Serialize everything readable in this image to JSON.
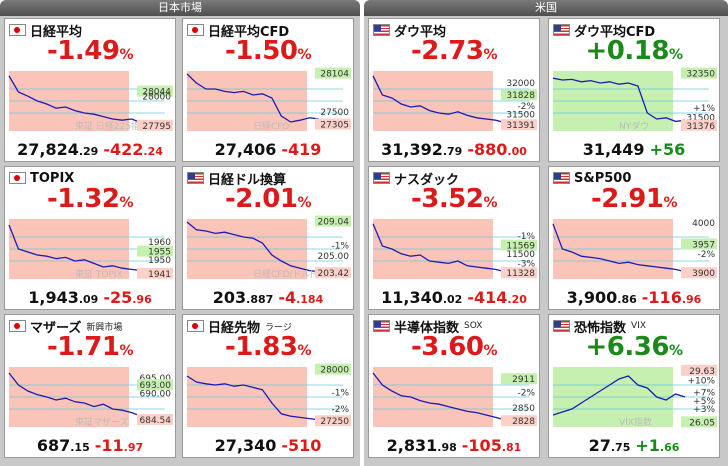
{
  "panels": {
    "left": {
      "title": "日本市場"
    },
    "right": {
      "title": "米国"
    }
  },
  "colors": {
    "down": "#dd1a1a",
    "up": "#1a8a1a",
    "down_fill": "#fbc4b8",
    "up_fill": "#c6f0b0",
    "line": "#1b1bb5"
  },
  "cards": [
    {
      "id": "nikkei",
      "flag": "jp",
      "name": "日経平均",
      "sub": "",
      "pct": "-1.49",
      "pct_unit": "%",
      "dir": "down",
      "price_int": "27,824",
      "price_dec": ".29",
      "chg_int": "-422",
      "chg_dec": ".24",
      "labels": [
        {
          "t": "28044",
          "y": 0.36,
          "c": "green"
        },
        {
          "t": "28000",
          "y": 0.44,
          "c": "plain"
        },
        {
          "t": "27795",
          "y": 0.93,
          "c": "red"
        }
      ],
      "watermark": "東証 日経225指数",
      "trend": [
        0.08,
        0.35,
        0.42,
        0.5,
        0.55,
        0.62,
        0.6,
        0.66,
        0.7,
        0.72,
        0.76,
        0.8,
        0.82,
        0.8,
        0.86
      ]
    },
    {
      "id": "nikkei_cfd",
      "flag": "jp",
      "name": "日経平均CFD",
      "sub": "",
      "pct": "-1.50",
      "pct_unit": "%",
      "dir": "down",
      "price_int": "27,406",
      "price_dec": "",
      "chg_int": "-419",
      "chg_dec": "",
      "labels": [
        {
          "t": "28104",
          "y": 0.06,
          "c": "green"
        },
        {
          "t": "27500",
          "y": 0.7,
          "c": "plain"
        },
        {
          "t": "27305",
          "y": 0.91,
          "c": "red"
        }
      ],
      "watermark": "日経CFD",
      "trend": [
        0.05,
        0.2,
        0.3,
        0.3,
        0.34,
        0.36,
        0.34,
        0.4,
        0.38,
        0.45,
        0.75,
        0.85,
        0.82,
        0.78,
        0.8
      ]
    },
    {
      "id": "dow",
      "flag": "us",
      "name": "ダウ平均",
      "sub": "",
      "pct": "-2.73",
      "pct_unit": "%",
      "dir": "down",
      "price_int": "31,392",
      "price_dec": ".79",
      "chg_int": "-880",
      "chg_dec": ".00",
      "labels": [
        {
          "t": "32000",
          "y": 0.22,
          "c": "plain"
        },
        {
          "t": "31828",
          "y": 0.42,
          "c": "green"
        },
        {
          "t": "-2%",
          "y": 0.6,
          "c": "plain"
        },
        {
          "t": "31500",
          "y": 0.74,
          "c": "plain"
        },
        {
          "t": "31391",
          "y": 0.92,
          "c": "red"
        }
      ],
      "watermark": "",
      "trend": [
        0.08,
        0.4,
        0.45,
        0.55,
        0.6,
        0.58,
        0.66,
        0.7,
        0.72,
        0.68,
        0.74,
        0.78,
        0.8,
        0.82,
        0.86
      ]
    },
    {
      "id": "dow_cfd",
      "flag": "us",
      "name": "ダウ平均CFD",
      "sub": "",
      "pct": "+0.18",
      "pct_unit": "%",
      "dir": "up",
      "price_int": "31,449",
      "price_dec": "",
      "chg_int": "+56",
      "chg_dec": "",
      "labels": [
        {
          "t": "32350",
          "y": 0.06,
          "c": "green"
        },
        {
          "t": "+1%",
          "y": 0.63,
          "c": "plain"
        },
        {
          "t": "31500",
          "y": 0.79,
          "c": "plain"
        },
        {
          "t": "31376",
          "y": 0.93,
          "c": "red"
        }
      ],
      "watermark": "NYダウ",
      "trend": [
        0.12,
        0.15,
        0.14,
        0.18,
        0.16,
        0.2,
        0.18,
        0.22,
        0.2,
        0.25,
        0.7,
        0.8,
        0.78,
        0.84,
        0.82
      ]
    },
    {
      "id": "topix",
      "flag": "jp",
      "name": "TOPIX",
      "sub": "",
      "pct": "-1.32",
      "pct_unit": "%",
      "dir": "down",
      "price_int": "1,943",
      "price_dec": ".09",
      "chg_int": "-25",
      "chg_dec": ".96",
      "labels": [
        {
          "t": "1960",
          "y": 0.4,
          "c": "plain"
        },
        {
          "t": "1955",
          "y": 0.56,
          "c": "green"
        },
        {
          "t": "1950",
          "y": 0.7,
          "c": "plain"
        },
        {
          "t": "1941",
          "y": 0.93,
          "c": "red"
        }
      ],
      "watermark": "東証 TOPIX",
      "trend": [
        0.1,
        0.5,
        0.55,
        0.6,
        0.62,
        0.66,
        0.64,
        0.7,
        0.68,
        0.74,
        0.8,
        0.78,
        0.82,
        0.84,
        0.86
      ]
    },
    {
      "id": "nikkei_usd",
      "flag": "us",
      "name": "日経ドル換算",
      "sub": "",
      "pct": "-2.01",
      "pct_unit": "%",
      "dir": "down",
      "price_int": "203",
      "price_dec": ".887",
      "chg_int": "-4",
      "chg_dec": ".184",
      "labels": [
        {
          "t": "209.04",
          "y": 0.06,
          "c": "green"
        },
        {
          "t": "-1%",
          "y": 0.46,
          "c": "plain"
        },
        {
          "t": "205.00",
          "y": 0.63,
          "c": "plain"
        },
        {
          "t": "203.42",
          "y": 0.92,
          "c": "red"
        }
      ],
      "watermark": "日経CFD/ドル円",
      "trend": [
        0.05,
        0.18,
        0.2,
        0.24,
        0.22,
        0.26,
        0.3,
        0.32,
        0.4,
        0.6,
        0.7,
        0.78,
        0.82,
        0.86,
        0.88
      ]
    },
    {
      "id": "nasdaq",
      "flag": "us",
      "name": "ナスダック",
      "sub": "",
      "pct": "-3.52",
      "pct_unit": "%",
      "dir": "down",
      "price_int": "11,340",
      "price_dec": ".02",
      "chg_int": "-414",
      "chg_dec": ".20",
      "labels": [
        {
          "t": "-1%",
          "y": 0.3,
          "c": "plain"
        },
        {
          "t": "11569",
          "y": 0.46,
          "c": "green"
        },
        {
          "t": "11500",
          "y": 0.6,
          "c": "plain"
        },
        {
          "t": "-3%",
          "y": 0.76,
          "c": "plain"
        },
        {
          "t": "11328",
          "y": 0.92,
          "c": "red"
        }
      ],
      "watermark": "",
      "trend": [
        0.08,
        0.45,
        0.5,
        0.58,
        0.62,
        0.6,
        0.7,
        0.72,
        0.74,
        0.7,
        0.78,
        0.8,
        0.82,
        0.84,
        0.88
      ]
    },
    {
      "id": "sp500",
      "flag": "us",
      "name": "S&P500",
      "sub": "",
      "pct": "-2.91",
      "pct_unit": "%",
      "dir": "down",
      "price_int": "3,900",
      "price_dec": ".86",
      "chg_int": "-116",
      "chg_dec": ".96",
      "labels": [
        {
          "t": "4000",
          "y": 0.08,
          "c": "plain"
        },
        {
          "t": "3957",
          "y": 0.44,
          "c": "green"
        },
        {
          "t": "-2%",
          "y": 0.6,
          "c": "plain"
        },
        {
          "t": "3900",
          "y": 0.92,
          "c": "red"
        }
      ],
      "watermark": "",
      "trend": [
        0.08,
        0.5,
        0.55,
        0.62,
        0.64,
        0.66,
        0.7,
        0.74,
        0.72,
        0.76,
        0.78,
        0.8,
        0.82,
        0.84,
        0.88
      ]
    },
    {
      "id": "mothers",
      "flag": "jp",
      "name": "マザーズ",
      "sub": "新興市場",
      "pct": "-1.71",
      "pct_unit": "%",
      "dir": "down",
      "price_int": "687",
      "price_dec": ".15",
      "chg_int": "-11",
      "chg_dec": ".97",
      "labels": [
        {
          "t": "695.00",
          "y": 0.2,
          "c": "plain"
        },
        {
          "t": "693.00",
          "y": 0.32,
          "c": "green"
        },
        {
          "t": "690.00",
          "y": 0.46,
          "c": "plain"
        },
        {
          "t": "684.54",
          "y": 0.9,
          "c": "red"
        }
      ],
      "watermark": "東証マザーズ",
      "trend": [
        0.1,
        0.3,
        0.4,
        0.46,
        0.5,
        0.55,
        0.52,
        0.58,
        0.6,
        0.66,
        0.62,
        0.7,
        0.72,
        0.76,
        0.82
      ]
    },
    {
      "id": "nikkei_futures",
      "flag": "jp",
      "name": "日経先物",
      "sub": "ラージ",
      "pct": "-1.83",
      "pct_unit": "%",
      "dir": "down",
      "price_int": "27,340",
      "price_dec": "",
      "chg_int": "-510",
      "chg_dec": "",
      "labels": [
        {
          "t": "28000",
          "y": 0.06,
          "c": "green"
        },
        {
          "t": "-1%",
          "y": 0.44,
          "c": "plain"
        },
        {
          "t": "-2%",
          "y": 0.72,
          "c": "plain"
        },
        {
          "t": "27250",
          "y": 0.92,
          "c": "red"
        }
      ],
      "watermark": "",
      "trend": [
        0.15,
        0.25,
        0.28,
        0.3,
        0.28,
        0.32,
        0.3,
        0.34,
        0.38,
        0.6,
        0.78,
        0.82,
        0.84,
        0.86,
        0.88
      ]
    },
    {
      "id": "sox",
      "flag": "us",
      "name": "半導体指数",
      "sub": "SOX",
      "pct": "-3.60",
      "pct_unit": "%",
      "dir": "down",
      "price_int": "2,831",
      "price_dec": ".98",
      "chg_int": "-105",
      "chg_dec": ".81",
      "labels": [
        {
          "t": "2911",
          "y": 0.22,
          "c": "green"
        },
        {
          "t": "-2%",
          "y": 0.44,
          "c": "plain"
        },
        {
          "t": "2850",
          "y": 0.7,
          "c": "plain"
        },
        {
          "t": "2828",
          "y": 0.92,
          "c": "red"
        }
      ],
      "watermark": "",
      "trend": [
        0.1,
        0.3,
        0.4,
        0.48,
        0.5,
        0.56,
        0.6,
        0.62,
        0.66,
        0.7,
        0.74,
        0.76,
        0.8,
        0.84,
        0.88
      ]
    },
    {
      "id": "vix",
      "flag": "us",
      "name": "恐怖指数",
      "sub": "VIX",
      "pct": "+6.36",
      "pct_unit": "%",
      "dir": "up",
      "price_int": "27",
      "price_dec": ".75",
      "chg_int": "+1",
      "chg_dec": ".66",
      "labels": [
        {
          "t": "29.63",
          "y": 0.08,
          "c": "red"
        },
        {
          "t": "+10%",
          "y": 0.24,
          "c": "plain"
        },
        {
          "t": "+7%",
          "y": 0.44,
          "c": "plain"
        },
        {
          "t": "+5%",
          "y": 0.58,
          "c": "plain"
        },
        {
          "t": "+3%",
          "y": 0.72,
          "c": "plain"
        },
        {
          "t": "26.05",
          "y": 0.94,
          "c": "green"
        }
      ],
      "watermark": "VIX指数",
      "trend": [
        0.8,
        0.75,
        0.7,
        0.6,
        0.5,
        0.4,
        0.3,
        0.2,
        0.15,
        0.3,
        0.35,
        0.5,
        0.55,
        0.45,
        0.5
      ]
    }
  ]
}
